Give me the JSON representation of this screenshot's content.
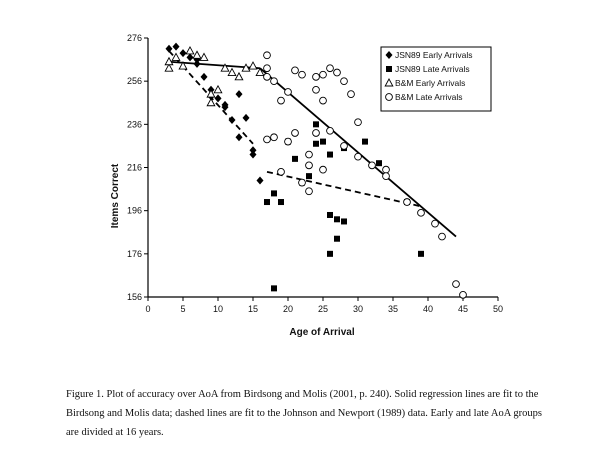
{
  "caption": "Figure 1.   Plot of accuracy over AoA from Birdsong and Molis (2001, p. 240).  Solid regression lines are fit to the Birdsong and Molis data; dashed lines are fit to the Johnson and Newport (1989) data.  Early and late AoA groups are divided at 16 years.",
  "chart_data": {
    "type": "scatter",
    "title": "",
    "xlabel": "Age of Arrival",
    "ylabel": "Items Correct",
    "xlim": [
      0,
      50
    ],
    "ylim": [
      156,
      276
    ],
    "x_ticks": [
      0,
      5,
      10,
      15,
      20,
      25,
      30,
      35,
      40,
      45,
      50
    ],
    "y_ticks": [
      156,
      176,
      196,
      216,
      236,
      256,
      276
    ],
    "grid": false,
    "legend_position": "top-right",
    "series": [
      {
        "name": "JSN89 Early Arrivals",
        "marker": "filled-diamond",
        "points": [
          [
            3,
            271
          ],
          [
            4,
            272
          ],
          [
            5,
            269
          ],
          [
            6,
            267
          ],
          [
            7,
            266
          ],
          [
            7,
            264
          ],
          [
            8,
            258
          ],
          [
            9,
            252
          ],
          [
            9,
            249
          ],
          [
            10,
            248
          ],
          [
            11,
            244
          ],
          [
            11,
            245
          ],
          [
            12,
            238
          ],
          [
            13,
            250
          ],
          [
            13,
            230
          ],
          [
            14,
            239
          ],
          [
            15,
            224
          ],
          [
            15,
            222
          ],
          [
            16,
            210
          ]
        ]
      },
      {
        "name": "JSN89 Late Arrivals",
        "marker": "filled-square",
        "points": [
          [
            17,
            200
          ],
          [
            18,
            204
          ],
          [
            18,
            160
          ],
          [
            19,
            200
          ],
          [
            20,
            228
          ],
          [
            21,
            220
          ],
          [
            22,
            209
          ],
          [
            23,
            212
          ],
          [
            24,
            227
          ],
          [
            24,
            236
          ],
          [
            25,
            228
          ],
          [
            26,
            222
          ],
          [
            26,
            194
          ],
          [
            27,
            192
          ],
          [
            27,
            183
          ],
          [
            28,
            225
          ],
          [
            28,
            191
          ],
          [
            26,
            176
          ],
          [
            31,
            228
          ],
          [
            33,
            218
          ],
          [
            37,
            200
          ],
          [
            39,
            176
          ]
        ]
      },
      {
        "name": "B&M Early Arrivals",
        "marker": "open-triangle",
        "points": [
          [
            3,
            262
          ],
          [
            3,
            265
          ],
          [
            4,
            267
          ],
          [
            5,
            263
          ],
          [
            6,
            270
          ],
          [
            7,
            268
          ],
          [
            8,
            267
          ],
          [
            9,
            250
          ],
          [
            9,
            246
          ],
          [
            10,
            252
          ],
          [
            11,
            262
          ],
          [
            12,
            260
          ],
          [
            13,
            258
          ],
          [
            14,
            262
          ],
          [
            15,
            263
          ],
          [
            16,
            260
          ]
        ]
      },
      {
        "name": "B&M Late Arrivals",
        "marker": "open-circle",
        "points": [
          [
            17,
            268
          ],
          [
            17,
            262
          ],
          [
            17,
            258
          ],
          [
            18,
            256
          ],
          [
            18,
            230
          ],
          [
            17,
            229
          ],
          [
            19,
            247
          ],
          [
            20,
            228
          ],
          [
            20,
            251
          ],
          [
            21,
            261
          ],
          [
            22,
            259
          ],
          [
            23,
            217
          ],
          [
            23,
            205
          ],
          [
            24,
            258
          ],
          [
            24,
            252
          ],
          [
            25,
            247
          ],
          [
            25,
            259
          ],
          [
            26,
            262
          ],
          [
            27,
            260
          ],
          [
            28,
            226
          ],
          [
            28,
            256
          ],
          [
            29,
            250
          ],
          [
            30,
            221
          ],
          [
            30,
            237
          ],
          [
            32,
            217
          ],
          [
            34,
            215
          ],
          [
            34,
            212
          ],
          [
            37,
            200
          ],
          [
            39,
            195
          ],
          [
            42,
            184
          ],
          [
            44,
            162
          ],
          [
            45,
            157
          ],
          [
            41,
            190
          ],
          [
            21,
            232
          ],
          [
            19,
            214
          ],
          [
            22,
            209
          ],
          [
            25,
            215
          ],
          [
            23,
            222
          ],
          [
            26,
            233
          ],
          [
            24,
            232
          ]
        ]
      }
    ],
    "regression_lines": [
      {
        "style": "solid",
        "x": [
          3,
          16
        ],
        "y": [
          265,
          262
        ]
      },
      {
        "style": "dashed",
        "x": [
          3,
          15
        ],
        "y": [
          270,
          227
        ]
      },
      {
        "style": "solid",
        "x": [
          16,
          44
        ],
        "y": [
          262,
          184
        ]
      },
      {
        "style": "dashed",
        "x": [
          17,
          39
        ],
        "y": [
          214,
          198
        ]
      }
    ]
  }
}
